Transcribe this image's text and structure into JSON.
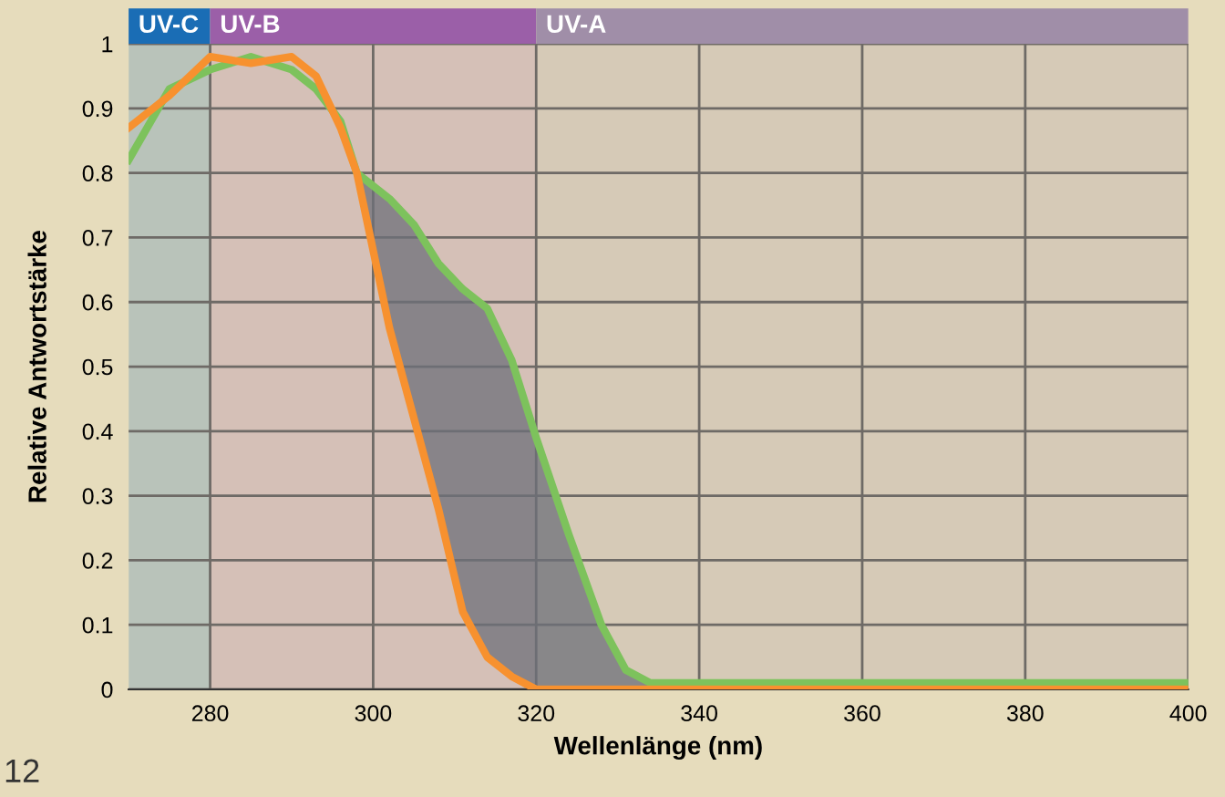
{
  "chart_data": {
    "type": "line",
    "xlabel": "Wellenlänge (nm)",
    "ylabel": "Relative Antwortstärke",
    "x": [
      270,
      275,
      280,
      285,
      290,
      293,
      296,
      298,
      302,
      305,
      308,
      311,
      314,
      317,
      320,
      324,
      328,
      331,
      334,
      340,
      400
    ],
    "series": [
      {
        "color": "#7dc25c",
        "values": [
          0.82,
          0.93,
          0.96,
          0.98,
          0.96,
          0.93,
          0.88,
          0.8,
          0.76,
          0.72,
          0.66,
          0.62,
          0.59,
          0.51,
          0.39,
          0.24,
          0.1,
          0.03,
          0.01,
          0.01,
          0.01
        ],
        "lower": [
          null,
          null,
          null,
          null,
          null,
          null,
          null,
          0.8,
          0.56,
          0.42,
          0.28,
          0.12,
          0.05,
          0.02,
          0,
          0,
          0,
          0,
          0,
          null,
          null
        ],
        "upper": [
          null,
          null,
          null,
          null,
          null,
          null,
          null,
          0.8,
          0.76,
          0.72,
          0.66,
          0.62,
          0.59,
          0.51,
          0.39,
          0.24,
          0.1,
          0.03,
          0.01,
          null,
          null
        ]
      },
      {
        "color": "#f7912f",
        "values": [
          0.87,
          0.92,
          0.98,
          0.97,
          0.98,
          0.95,
          0.87,
          0.8,
          0.56,
          0.42,
          0.28,
          0.12,
          0.05,
          0.02,
          0,
          0,
          0,
          0,
          0,
          0,
          0
        ]
      }
    ],
    "bands": [
      {
        "axis": "x",
        "from": 270,
        "to": 280,
        "label": "UV-C",
        "color": "#1a6db5"
      },
      {
        "axis": "x",
        "from": 280,
        "to": 320,
        "label": "UV-B",
        "color": "#9b5fa8"
      },
      {
        "axis": "x",
        "from": 320,
        "to": 400,
        "label": "UV-A",
        "color": "#a08ea8"
      }
    ],
    "xlim": [
      270,
      400
    ],
    "xticks": [
      280,
      300,
      320,
      340,
      360,
      380,
      400
    ],
    "ylim": [
      0,
      1
    ],
    "yticks": [
      0,
      0.1,
      0.2,
      0.3,
      0.4,
      0.5,
      0.6,
      0.7,
      0.8,
      0.9,
      1
    ],
    "grid": true,
    "annotations": [
      "12"
    ]
  }
}
